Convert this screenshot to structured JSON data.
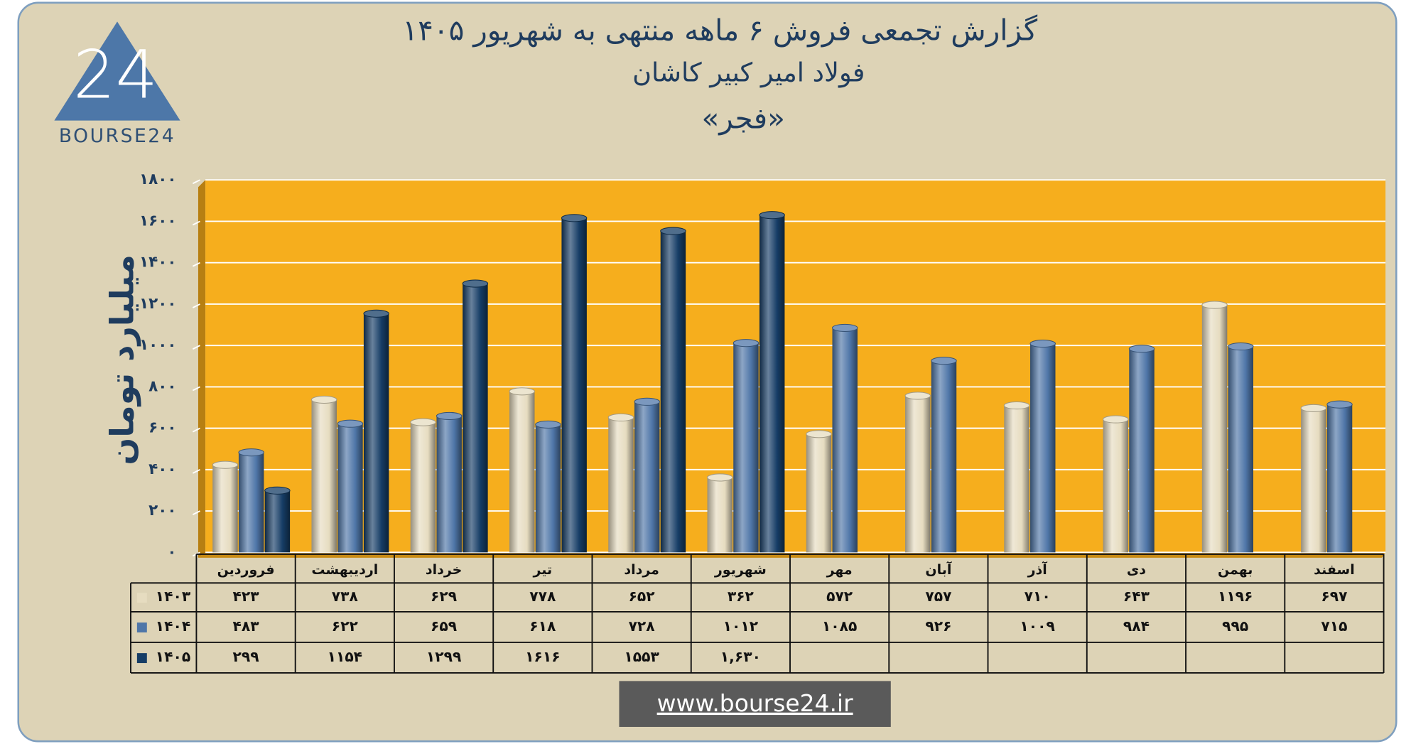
{
  "chart_data": {
    "type": "bar",
    "title_lines": [
      "گزارش تجمعی فروش ۶ ماهه منتهی به شهریور ۱۴۰۵",
      "فولاد امیر کبیر کاشان",
      "«فجر»"
    ],
    "y_label": "میلیارد تومان",
    "categories": [
      "فروردین",
      "اردیبهشت",
      "خرداد",
      "تیر",
      "مرداد",
      "شهریور",
      "مهر",
      "آبان",
      "آذر",
      "دی",
      "بهمن",
      "اسفند"
    ],
    "series": [
      {
        "name": "۱۴۰۳",
        "color": "#e6dcc0",
        "values": [
          423,
          738,
          629,
          778,
          652,
          362,
          572,
          757,
          710,
          643,
          1196,
          697
        ],
        "value_labels": [
          "۴۲۳",
          "۷۳۸",
          "۶۲۹",
          "۷۷۸",
          "۶۵۲",
          "۳۶۲",
          "۵۷۲",
          "۷۵۷",
          "۷۱۰",
          "۶۴۳",
          "۱۱۹۶",
          "۶۹۷"
        ]
      },
      {
        "name": "۱۴۰۴",
        "color": "#4f76a8",
        "values": [
          483,
          622,
          659,
          618,
          728,
          1012,
          1085,
          926,
          1009,
          984,
          995,
          715
        ],
        "value_labels": [
          "۴۸۳",
          "۶۲۲",
          "۶۵۹",
          "۶۱۸",
          "۷۲۸",
          "۱۰۱۲",
          "۱۰۸۵",
          "۹۲۶",
          "۱۰۰۹",
          "۹۸۴",
          "۹۹۵",
          "۷۱۵"
        ]
      },
      {
        "name": "۱۴۰۵",
        "color": "#163d66",
        "values": [
          299,
          1154,
          1299,
          1616,
          1553,
          1630,
          null,
          null,
          null,
          null,
          null,
          null
        ],
        "value_labels": [
          "۲۹۹",
          "۱۱۵۴",
          "۱۲۹۹",
          "۱۶۱۶",
          "۱۵۵۳",
          "۱,۶۳۰",
          null,
          null,
          null,
          null,
          null,
          null
        ]
      }
    ],
    "ylim": [
      0,
      1800
    ],
    "yticks": [
      {
        "value": 0,
        "label": "۰"
      },
      {
        "value": 200,
        "label": "۲۰۰"
      },
      {
        "value": 400,
        "label": "۴۰۰"
      },
      {
        "value": 600,
        "label": "۶۰۰"
      },
      {
        "value": 800,
        "label": "۸۰۰"
      },
      {
        "value": 1000,
        "label": "۱۰۰۰"
      },
      {
        "value": 1200,
        "label": "۱۲۰۰"
      },
      {
        "value": 1400,
        "label": "۱۴۰۰"
      },
      {
        "value": 1600,
        "label": "۱۶۰۰"
      },
      {
        "value": 1800,
        "label": "۱۸۰۰"
      }
    ],
    "grid": true
  },
  "logo": {
    "number": "24",
    "text": "BOURSE24"
  },
  "footer": {
    "url": "www.bourse24.ir"
  }
}
